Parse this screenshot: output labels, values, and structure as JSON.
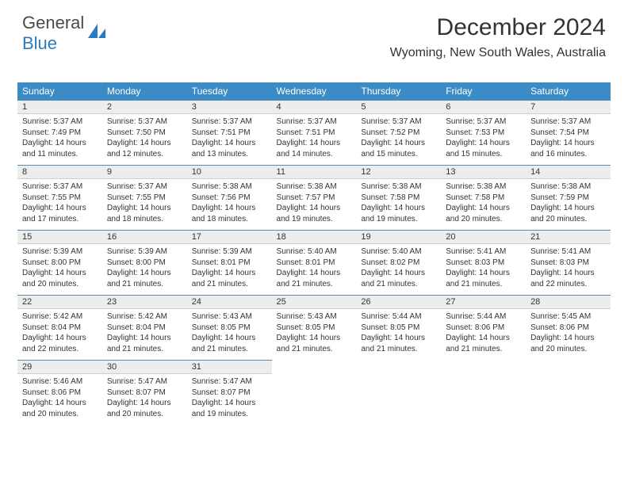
{
  "logo": {
    "part1": "General",
    "part2": "Blue"
  },
  "header": {
    "title": "December 2024",
    "location": "Wyoming, New South Wales, Australia"
  },
  "colors": {
    "header_bg": "#3b8bc6",
    "header_text": "#ffffff",
    "daynum_bg": "#eceded",
    "border_top": "#5a8cb3",
    "logo_blue": "#2a7bbf",
    "text": "#333333"
  },
  "dayHeaders": [
    "Sunday",
    "Monday",
    "Tuesday",
    "Wednesday",
    "Thursday",
    "Friday",
    "Saturday"
  ],
  "weeks": [
    [
      {
        "n": "1",
        "sr": "Sunrise: 5:37 AM",
        "ss": "Sunset: 7:49 PM",
        "d1": "Daylight: 14 hours",
        "d2": "and 11 minutes."
      },
      {
        "n": "2",
        "sr": "Sunrise: 5:37 AM",
        "ss": "Sunset: 7:50 PM",
        "d1": "Daylight: 14 hours",
        "d2": "and 12 minutes."
      },
      {
        "n": "3",
        "sr": "Sunrise: 5:37 AM",
        "ss": "Sunset: 7:51 PM",
        "d1": "Daylight: 14 hours",
        "d2": "and 13 minutes."
      },
      {
        "n": "4",
        "sr": "Sunrise: 5:37 AM",
        "ss": "Sunset: 7:51 PM",
        "d1": "Daylight: 14 hours",
        "d2": "and 14 minutes."
      },
      {
        "n": "5",
        "sr": "Sunrise: 5:37 AM",
        "ss": "Sunset: 7:52 PM",
        "d1": "Daylight: 14 hours",
        "d2": "and 15 minutes."
      },
      {
        "n": "6",
        "sr": "Sunrise: 5:37 AM",
        "ss": "Sunset: 7:53 PM",
        "d1": "Daylight: 14 hours",
        "d2": "and 15 minutes."
      },
      {
        "n": "7",
        "sr": "Sunrise: 5:37 AM",
        "ss": "Sunset: 7:54 PM",
        "d1": "Daylight: 14 hours",
        "d2": "and 16 minutes."
      }
    ],
    [
      {
        "n": "8",
        "sr": "Sunrise: 5:37 AM",
        "ss": "Sunset: 7:55 PM",
        "d1": "Daylight: 14 hours",
        "d2": "and 17 minutes."
      },
      {
        "n": "9",
        "sr": "Sunrise: 5:37 AM",
        "ss": "Sunset: 7:55 PM",
        "d1": "Daylight: 14 hours",
        "d2": "and 18 minutes."
      },
      {
        "n": "10",
        "sr": "Sunrise: 5:38 AM",
        "ss": "Sunset: 7:56 PM",
        "d1": "Daylight: 14 hours",
        "d2": "and 18 minutes."
      },
      {
        "n": "11",
        "sr": "Sunrise: 5:38 AM",
        "ss": "Sunset: 7:57 PM",
        "d1": "Daylight: 14 hours",
        "d2": "and 19 minutes."
      },
      {
        "n": "12",
        "sr": "Sunrise: 5:38 AM",
        "ss": "Sunset: 7:58 PM",
        "d1": "Daylight: 14 hours",
        "d2": "and 19 minutes."
      },
      {
        "n": "13",
        "sr": "Sunrise: 5:38 AM",
        "ss": "Sunset: 7:58 PM",
        "d1": "Daylight: 14 hours",
        "d2": "and 20 minutes."
      },
      {
        "n": "14",
        "sr": "Sunrise: 5:38 AM",
        "ss": "Sunset: 7:59 PM",
        "d1": "Daylight: 14 hours",
        "d2": "and 20 minutes."
      }
    ],
    [
      {
        "n": "15",
        "sr": "Sunrise: 5:39 AM",
        "ss": "Sunset: 8:00 PM",
        "d1": "Daylight: 14 hours",
        "d2": "and 20 minutes."
      },
      {
        "n": "16",
        "sr": "Sunrise: 5:39 AM",
        "ss": "Sunset: 8:00 PM",
        "d1": "Daylight: 14 hours",
        "d2": "and 21 minutes."
      },
      {
        "n": "17",
        "sr": "Sunrise: 5:39 AM",
        "ss": "Sunset: 8:01 PM",
        "d1": "Daylight: 14 hours",
        "d2": "and 21 minutes."
      },
      {
        "n": "18",
        "sr": "Sunrise: 5:40 AM",
        "ss": "Sunset: 8:01 PM",
        "d1": "Daylight: 14 hours",
        "d2": "and 21 minutes."
      },
      {
        "n": "19",
        "sr": "Sunrise: 5:40 AM",
        "ss": "Sunset: 8:02 PM",
        "d1": "Daylight: 14 hours",
        "d2": "and 21 minutes."
      },
      {
        "n": "20",
        "sr": "Sunrise: 5:41 AM",
        "ss": "Sunset: 8:03 PM",
        "d1": "Daylight: 14 hours",
        "d2": "and 21 minutes."
      },
      {
        "n": "21",
        "sr": "Sunrise: 5:41 AM",
        "ss": "Sunset: 8:03 PM",
        "d1": "Daylight: 14 hours",
        "d2": "and 22 minutes."
      }
    ],
    [
      {
        "n": "22",
        "sr": "Sunrise: 5:42 AM",
        "ss": "Sunset: 8:04 PM",
        "d1": "Daylight: 14 hours",
        "d2": "and 22 minutes."
      },
      {
        "n": "23",
        "sr": "Sunrise: 5:42 AM",
        "ss": "Sunset: 8:04 PM",
        "d1": "Daylight: 14 hours",
        "d2": "and 21 minutes."
      },
      {
        "n": "24",
        "sr": "Sunrise: 5:43 AM",
        "ss": "Sunset: 8:05 PM",
        "d1": "Daylight: 14 hours",
        "d2": "and 21 minutes."
      },
      {
        "n": "25",
        "sr": "Sunrise: 5:43 AM",
        "ss": "Sunset: 8:05 PM",
        "d1": "Daylight: 14 hours",
        "d2": "and 21 minutes."
      },
      {
        "n": "26",
        "sr": "Sunrise: 5:44 AM",
        "ss": "Sunset: 8:05 PM",
        "d1": "Daylight: 14 hours",
        "d2": "and 21 minutes."
      },
      {
        "n": "27",
        "sr": "Sunrise: 5:44 AM",
        "ss": "Sunset: 8:06 PM",
        "d1": "Daylight: 14 hours",
        "d2": "and 21 minutes."
      },
      {
        "n": "28",
        "sr": "Sunrise: 5:45 AM",
        "ss": "Sunset: 8:06 PM",
        "d1": "Daylight: 14 hours",
        "d2": "and 20 minutes."
      }
    ],
    [
      {
        "n": "29",
        "sr": "Sunrise: 5:46 AM",
        "ss": "Sunset: 8:06 PM",
        "d1": "Daylight: 14 hours",
        "d2": "and 20 minutes."
      },
      {
        "n": "30",
        "sr": "Sunrise: 5:47 AM",
        "ss": "Sunset: 8:07 PM",
        "d1": "Daylight: 14 hours",
        "d2": "and 20 minutes."
      },
      {
        "n": "31",
        "sr": "Sunrise: 5:47 AM",
        "ss": "Sunset: 8:07 PM",
        "d1": "Daylight: 14 hours",
        "d2": "and 19 minutes."
      },
      null,
      null,
      null,
      null
    ]
  ]
}
